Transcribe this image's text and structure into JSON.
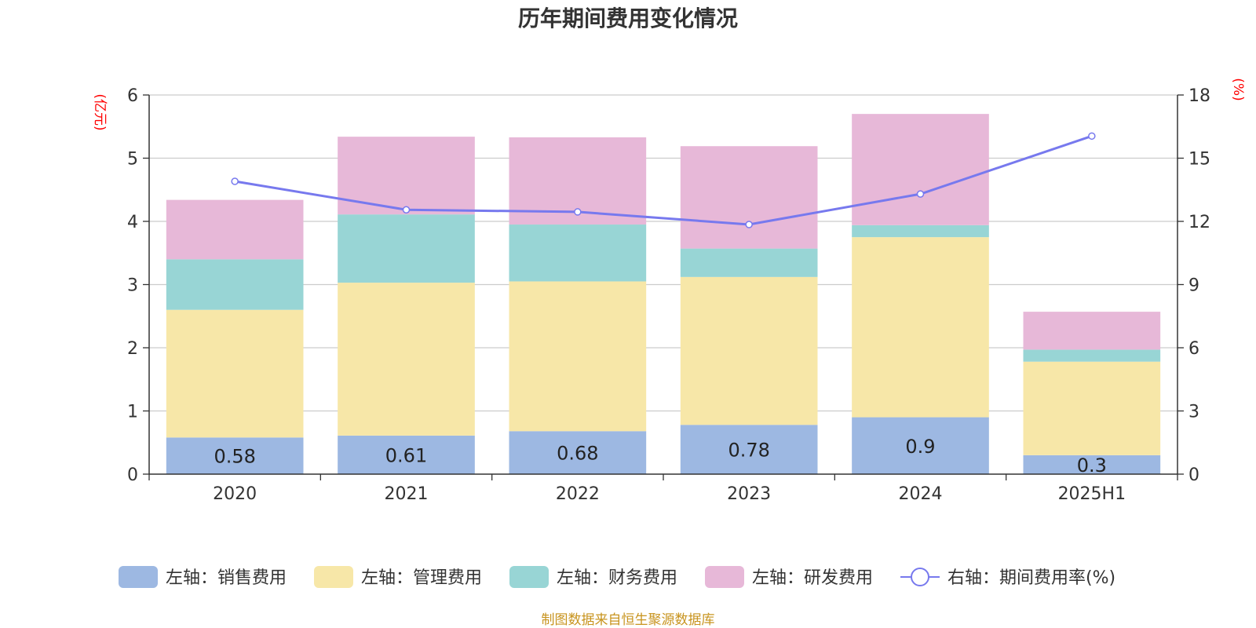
{
  "title": "历年期间费用变化情况",
  "left_unit": "(亿元)",
  "right_unit": "(%)",
  "source": "制图数据来自恒生聚源数据库",
  "colors": {
    "sales": "#9db8e2",
    "admin": "#f7e7a8",
    "finance": "#98d5d5",
    "rd": "#e7b8d8",
    "rate": "#7779ee"
  },
  "chart_data": {
    "type": "bar",
    "stacked": true,
    "categories": [
      "2020",
      "2021",
      "2022",
      "2023",
      "2024",
      "2025H1"
    ],
    "left_axis": {
      "ylim": [
        0,
        6
      ],
      "ticks": [
        "0",
        "1",
        "2",
        "3",
        "4",
        "5",
        "6"
      ]
    },
    "right_axis": {
      "ylim": [
        0,
        18
      ],
      "ticks": [
        "0",
        "3",
        "6",
        "9",
        "12",
        "15",
        "18"
      ]
    },
    "grid": true,
    "legend_position": "bottom",
    "series": [
      {
        "name": "左轴：销售费用",
        "key": "sales",
        "axis": "left",
        "type": "bar",
        "values": [
          0.58,
          0.61,
          0.68,
          0.78,
          0.9,
          0.3
        ],
        "labels": [
          "0.58",
          "0.61",
          "0.68",
          "0.78",
          "0.9",
          "0.3"
        ]
      },
      {
        "name": "左轴：管理费用",
        "key": "admin",
        "axis": "left",
        "type": "bar",
        "values": [
          2.02,
          2.42,
          2.37,
          2.34,
          2.85,
          1.48
        ]
      },
      {
        "name": "左轴：财务费用",
        "key": "finance",
        "axis": "left",
        "type": "bar",
        "values": [
          0.8,
          1.08,
          0.9,
          0.45,
          0.19,
          0.19
        ]
      },
      {
        "name": "左轴：研发费用",
        "key": "rd",
        "axis": "left",
        "type": "bar",
        "values": [
          0.94,
          1.23,
          1.38,
          1.62,
          1.76,
          0.6
        ]
      },
      {
        "name": "右轴：期间费用率(%)",
        "key": "rate",
        "axis": "right",
        "type": "line",
        "values": [
          13.9,
          12.55,
          12.45,
          11.85,
          13.3,
          16.05
        ]
      }
    ]
  }
}
